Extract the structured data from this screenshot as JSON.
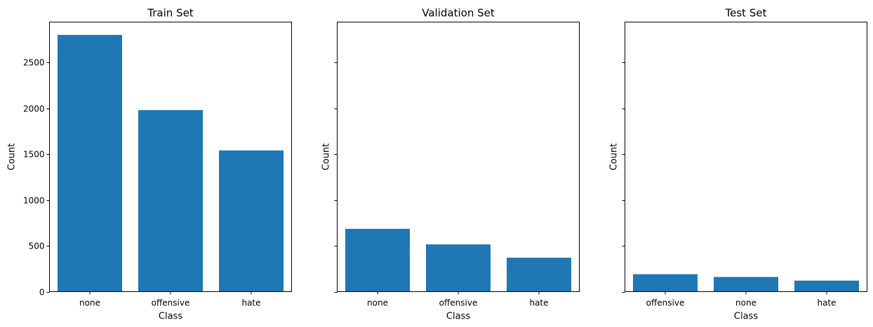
{
  "figure": {
    "bar_color": "#1f77b4"
  },
  "chart_data": [
    {
      "type": "bar",
      "title": "Train Set",
      "xlabel": "Class",
      "ylabel": "Count",
      "categories": [
        "none",
        "offensive",
        "hate"
      ],
      "values": [
        2800,
        1980,
        1540
      ],
      "ylim": [
        0,
        2940
      ],
      "yticks": [
        0,
        500,
        1000,
        1500,
        2000,
        2500
      ],
      "show_ytick_labels": true,
      "grid": false
    },
    {
      "type": "bar",
      "title": "Validation Set",
      "xlabel": "Class",
      "ylabel": "Count",
      "categories": [
        "none",
        "offensive",
        "hate"
      ],
      "values": [
        685,
        515,
        370
      ],
      "ylim": [
        0,
        2940
      ],
      "yticks": [
        0,
        500,
        1000,
        1500,
        2000,
        2500
      ],
      "show_ytick_labels": false,
      "grid": false
    },
    {
      "type": "bar",
      "title": "Test Set",
      "xlabel": "Class",
      "ylabel": "Count",
      "categories": [
        "offensive",
        "none",
        "hate"
      ],
      "values": [
        190,
        160,
        120
      ],
      "ylim": [
        0,
        2940
      ],
      "yticks": [
        0,
        500,
        1000,
        1500,
        2000,
        2500
      ],
      "show_ytick_labels": false,
      "grid": false
    }
  ]
}
